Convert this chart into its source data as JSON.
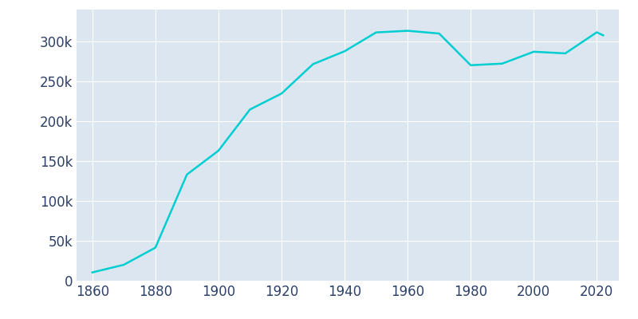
{
  "years": [
    1860,
    1870,
    1880,
    1890,
    1900,
    1910,
    1920,
    1930,
    1940,
    1950,
    1960,
    1970,
    1980,
    1990,
    2000,
    2010,
    2020,
    2022
  ],
  "population": [
    10401,
    20030,
    41473,
    133156,
    163065,
    214744,
    234698,
    271606,
    287736,
    311349,
    313411,
    309980,
    270230,
    272235,
    287151,
    285068,
    311527,
    307695
  ],
  "line_color": "#00CED1",
  "axes_bg_color": "#dce6f0",
  "figure_bg_color": "#ffffff",
  "tick_color": "#2d4068",
  "grid_color": "#ffffff",
  "line_width": 1.8,
  "xlim": [
    1855,
    2027
  ],
  "ylim": [
    0,
    340000
  ],
  "ytick_values": [
    0,
    50000,
    100000,
    150000,
    200000,
    250000,
    300000
  ],
  "xtick_values": [
    1860,
    1880,
    1900,
    1920,
    1940,
    1960,
    1980,
    2000,
    2020
  ],
  "fontsize": 12
}
